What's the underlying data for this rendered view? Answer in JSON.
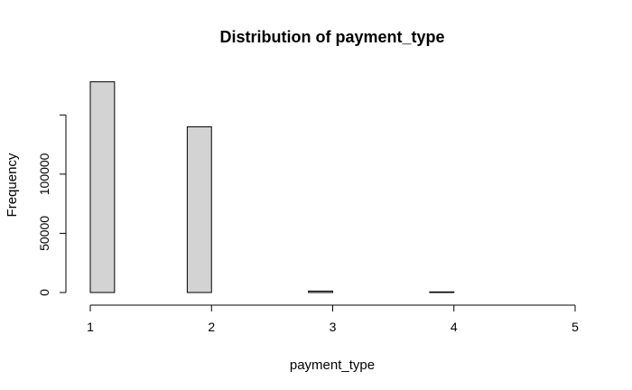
{
  "chart_data": {
    "type": "bar",
    "title": "Distribution of payment_type",
    "xlabel": "payment_type",
    "ylabel": "Frequency",
    "bins": [
      {
        "x0": 1.0,
        "x1": 1.2,
        "value": 178000
      },
      {
        "x0": 1.2,
        "x1": 1.4,
        "value": 0
      },
      {
        "x0": 1.4,
        "x1": 1.6,
        "value": 0
      },
      {
        "x0": 1.6,
        "x1": 1.8,
        "value": 0
      },
      {
        "x0": 1.8,
        "x1": 2.0,
        "value": 140000
      },
      {
        "x0": 2.0,
        "x1": 2.2,
        "value": 0
      },
      {
        "x0": 2.2,
        "x1": 2.4,
        "value": 0
      },
      {
        "x0": 2.4,
        "x1": 2.6,
        "value": 0
      },
      {
        "x0": 2.6,
        "x1": 2.8,
        "value": 0
      },
      {
        "x0": 2.8,
        "x1": 3.0,
        "value": 1200
      },
      {
        "x0": 3.0,
        "x1": 3.2,
        "value": 0
      },
      {
        "x0": 3.2,
        "x1": 3.4,
        "value": 0
      },
      {
        "x0": 3.4,
        "x1": 3.6,
        "value": 0
      },
      {
        "x0": 3.6,
        "x1": 3.8,
        "value": 0
      },
      {
        "x0": 3.8,
        "x1": 4.0,
        "value": 500
      },
      {
        "x0": 4.0,
        "x1": 4.2,
        "value": 0
      },
      {
        "x0": 4.2,
        "x1": 4.4,
        "value": 0
      },
      {
        "x0": 4.4,
        "x1": 4.6,
        "value": 0
      },
      {
        "x0": 4.6,
        "x1": 4.8,
        "value": 0
      },
      {
        "x0": 4.8,
        "x1": 5.0,
        "value": 0
      }
    ],
    "xlim": [
      1,
      5
    ],
    "ylim": [
      0,
      180000
    ],
    "x_ticks": [
      1,
      2,
      3,
      4,
      5
    ],
    "y_ticks": [
      0,
      50000,
      100000,
      150000
    ],
    "y_tick_labels": [
      "0",
      "50000",
      "100000",
      ""
    ],
    "grid": false,
    "colors": {
      "bar_fill": "#d3d3d3",
      "bar_stroke": "#000000"
    }
  }
}
